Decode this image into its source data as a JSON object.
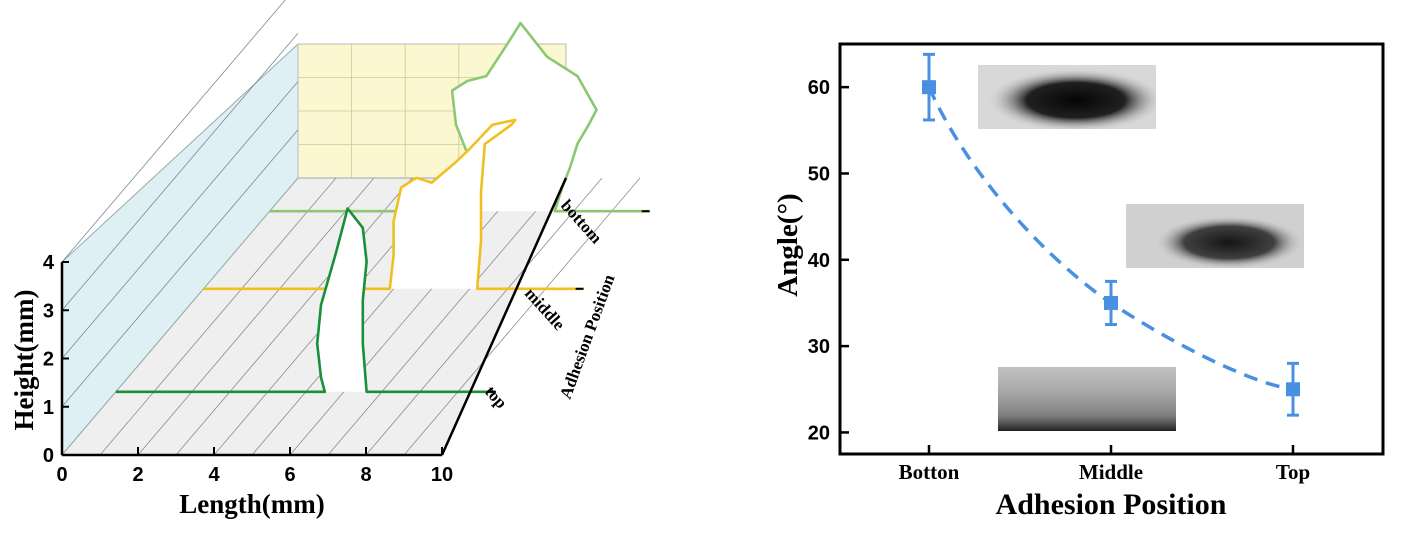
{
  "chart_data": [
    {
      "type": "line",
      "subtype": "3d-profile",
      "xlabel": "Length(mm)",
      "ylabel": "Height(mm)",
      "zlabel": "Adhesion Position",
      "x_ticks": [
        "0",
        "2",
        "4",
        "6",
        "8",
        "10"
      ],
      "y_ticks": [
        "0",
        "1",
        "2",
        "3",
        "4"
      ],
      "z_ticks": [
        "bottom",
        "middle",
        "top"
      ],
      "xlim": [
        0,
        10
      ],
      "ylim": [
        0,
        4
      ],
      "colors": {
        "bottom": "#8cc870",
        "middle": "#f0c020",
        "top": "#18903a"
      },
      "series": [
        {
          "name": "bottom",
          "x": [
            0,
            5.3,
            5.3,
            5.2,
            4.9,
            4.8,
            5.2,
            5.7,
            6.2,
            6.6,
            7.3,
            8.1,
            8.6,
            8.4,
            8.1,
            7.9,
            7.7,
            7.5,
            10
          ],
          "y": [
            0,
            0,
            0.6,
            1.2,
            1.8,
            2.5,
            2.7,
            2.8,
            3.4,
            3.9,
            3.2,
            2.8,
            2.1,
            1.8,
            1.4,
            0.9,
            0.5,
            0,
            0
          ]
        },
        {
          "name": "middle",
          "x": [
            0,
            4.9,
            5.0,
            5.0,
            5.2,
            5.6,
            6.0,
            6.3,
            6.6,
            7.0,
            7.6,
            8.2,
            8.1,
            7.4,
            7.3,
            7.3,
            7.2,
            10
          ],
          "y": [
            0,
            0,
            0.7,
            1.4,
            2.1,
            2.3,
            2.2,
            2.4,
            2.6,
            2.9,
            3.4,
            3.5,
            3.4,
            3.0,
            2.0,
            1.0,
            0,
            0
          ]
        },
        {
          "name": "top",
          "x": [
            0,
            5.5,
            5.4,
            5.3,
            5.4,
            5.8,
            6.1,
            6.5,
            6.6,
            6.5,
            6.5,
            6.6,
            10
          ],
          "y": [
            0,
            0,
            0.3,
            1.0,
            1.8,
            2.9,
            3.8,
            3.4,
            2.7,
            1.9,
            1.0,
            0,
            0
          ]
        }
      ]
    },
    {
      "type": "scatter",
      "xlabel": "Adhesion Position",
      "ylabel": "Angle(°)",
      "categories": [
        "Botton",
        "Middle",
        "Top"
      ],
      "y_ticks": [
        "20",
        "30",
        "40",
        "50",
        "60"
      ],
      "ylim": [
        17.5,
        65
      ],
      "values": [
        60,
        35,
        25
      ],
      "error": [
        3.8,
        2.5,
        3.0
      ],
      "fit": "dashed",
      "color": "#4a90e2"
    }
  ]
}
